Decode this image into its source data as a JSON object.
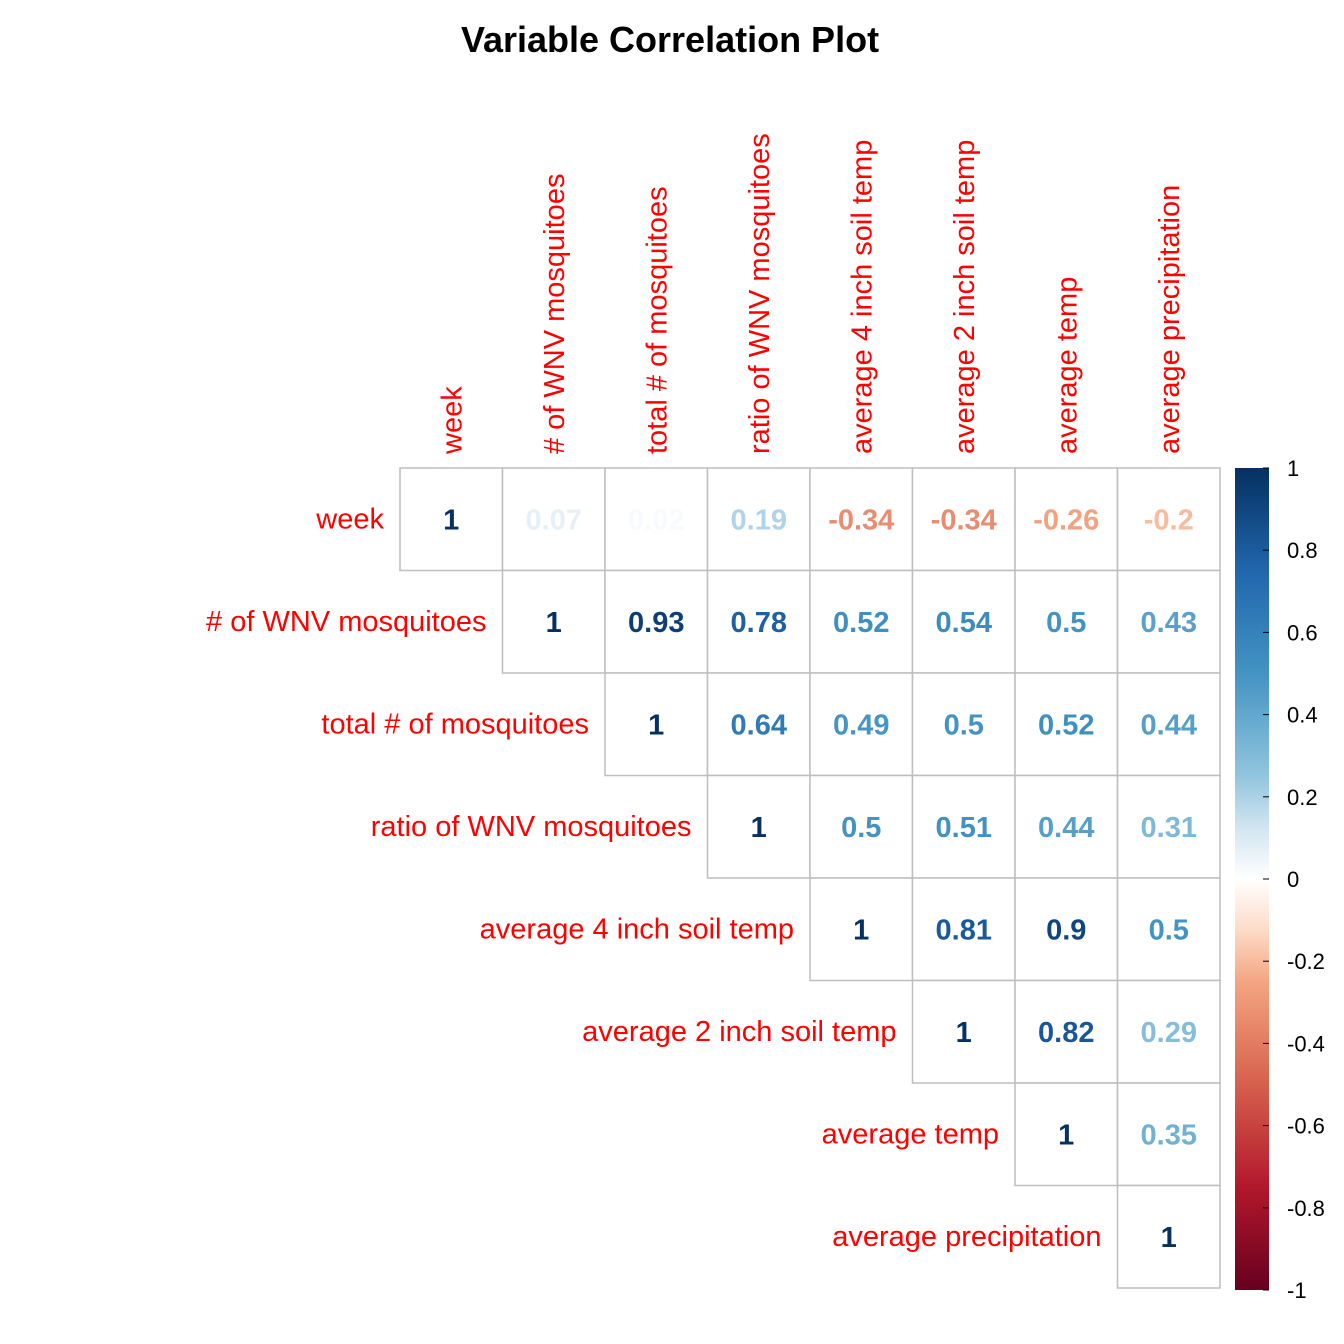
{
  "chart_data": {
    "type": "heatmap",
    "title": "Variable Correlation Plot",
    "variables": [
      "week",
      "# of WNV mosquitoes",
      "total # of mosquitoes",
      "ratio of WNV mosquitoes",
      "average 4 inch soil temp",
      "average 2 inch soil temp",
      "average temp",
      "average precipitation"
    ],
    "matrix_layout": "upper-triangle",
    "matrix": [
      [
        1,
        0.07,
        0.02,
        0.19,
        -0.34,
        -0.34,
        -0.26,
        -0.2
      ],
      [
        null,
        1,
        0.93,
        0.78,
        0.52,
        0.54,
        0.5,
        0.43
      ],
      [
        null,
        null,
        1,
        0.64,
        0.49,
        0.5,
        0.52,
        0.44
      ],
      [
        null,
        null,
        null,
        1,
        0.5,
        0.51,
        0.44,
        0.31
      ],
      [
        null,
        null,
        null,
        null,
        1,
        0.81,
        0.9,
        0.5
      ],
      [
        null,
        null,
        null,
        null,
        null,
        1,
        0.82,
        0.29
      ],
      [
        null,
        null,
        null,
        null,
        null,
        null,
        1,
        0.35
      ],
      [
        null,
        null,
        null,
        null,
        null,
        null,
        null,
        1
      ]
    ],
    "value_display": "number",
    "color_scale": {
      "range": [
        -1,
        1
      ],
      "ticks": [
        "1",
        "0.8",
        "0.6",
        "0.4",
        "0.2",
        "0",
        "-0.2",
        "-0.4",
        "-0.6",
        "-0.8",
        "-1"
      ],
      "stops": [
        [
          -1,
          "#67001f"
        ],
        [
          -0.75,
          "#b2182b"
        ],
        [
          -0.5,
          "#d6604d"
        ],
        [
          -0.25,
          "#f4a582"
        ],
        [
          -0.125,
          "#fddbc7"
        ],
        [
          0,
          "#ffffff"
        ],
        [
          0.125,
          "#d1e5f0"
        ],
        [
          0.25,
          "#92c5de"
        ],
        [
          0.5,
          "#4393c3"
        ],
        [
          0.75,
          "#2166ac"
        ],
        [
          1,
          "#053061"
        ]
      ]
    },
    "label_color": "#ff0000",
    "grid_color": "#bebebe",
    "legend_placement": "right"
  }
}
